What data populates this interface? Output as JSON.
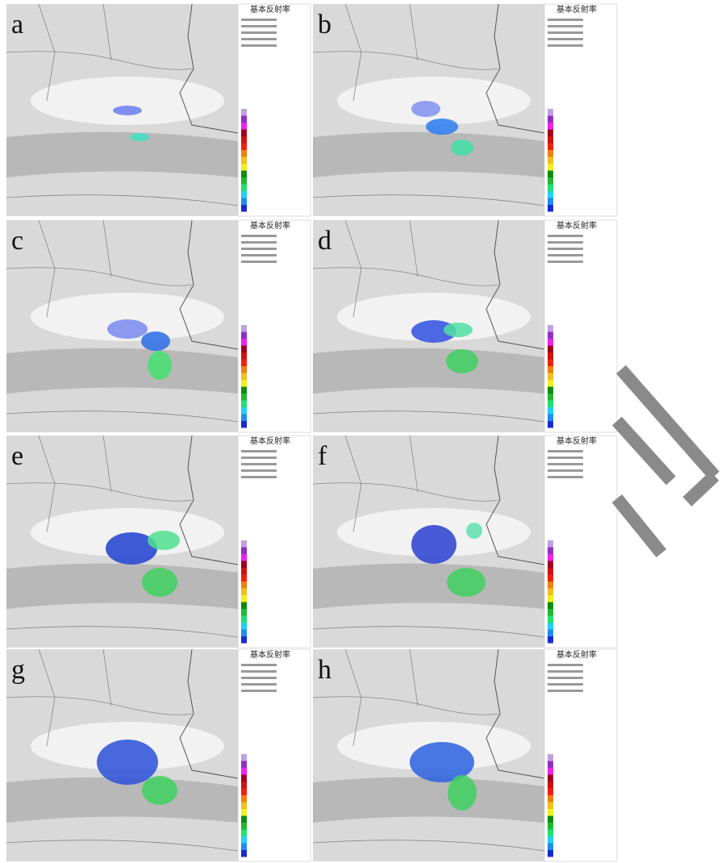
{
  "panels": [
    {
      "label": "a",
      "title": "基本反射率"
    },
    {
      "label": "b",
      "title": "基本反射率"
    },
    {
      "label": "c",
      "title": "基本反射率"
    },
    {
      "label": "d",
      "title": "基本反射率"
    },
    {
      "label": "e",
      "title": "基本反射率"
    },
    {
      "label": "f",
      "title": "基本反射率"
    },
    {
      "label": "g",
      "title": "基本反射率"
    },
    {
      "label": "h",
      "title": "基本反射率"
    }
  ]
}
